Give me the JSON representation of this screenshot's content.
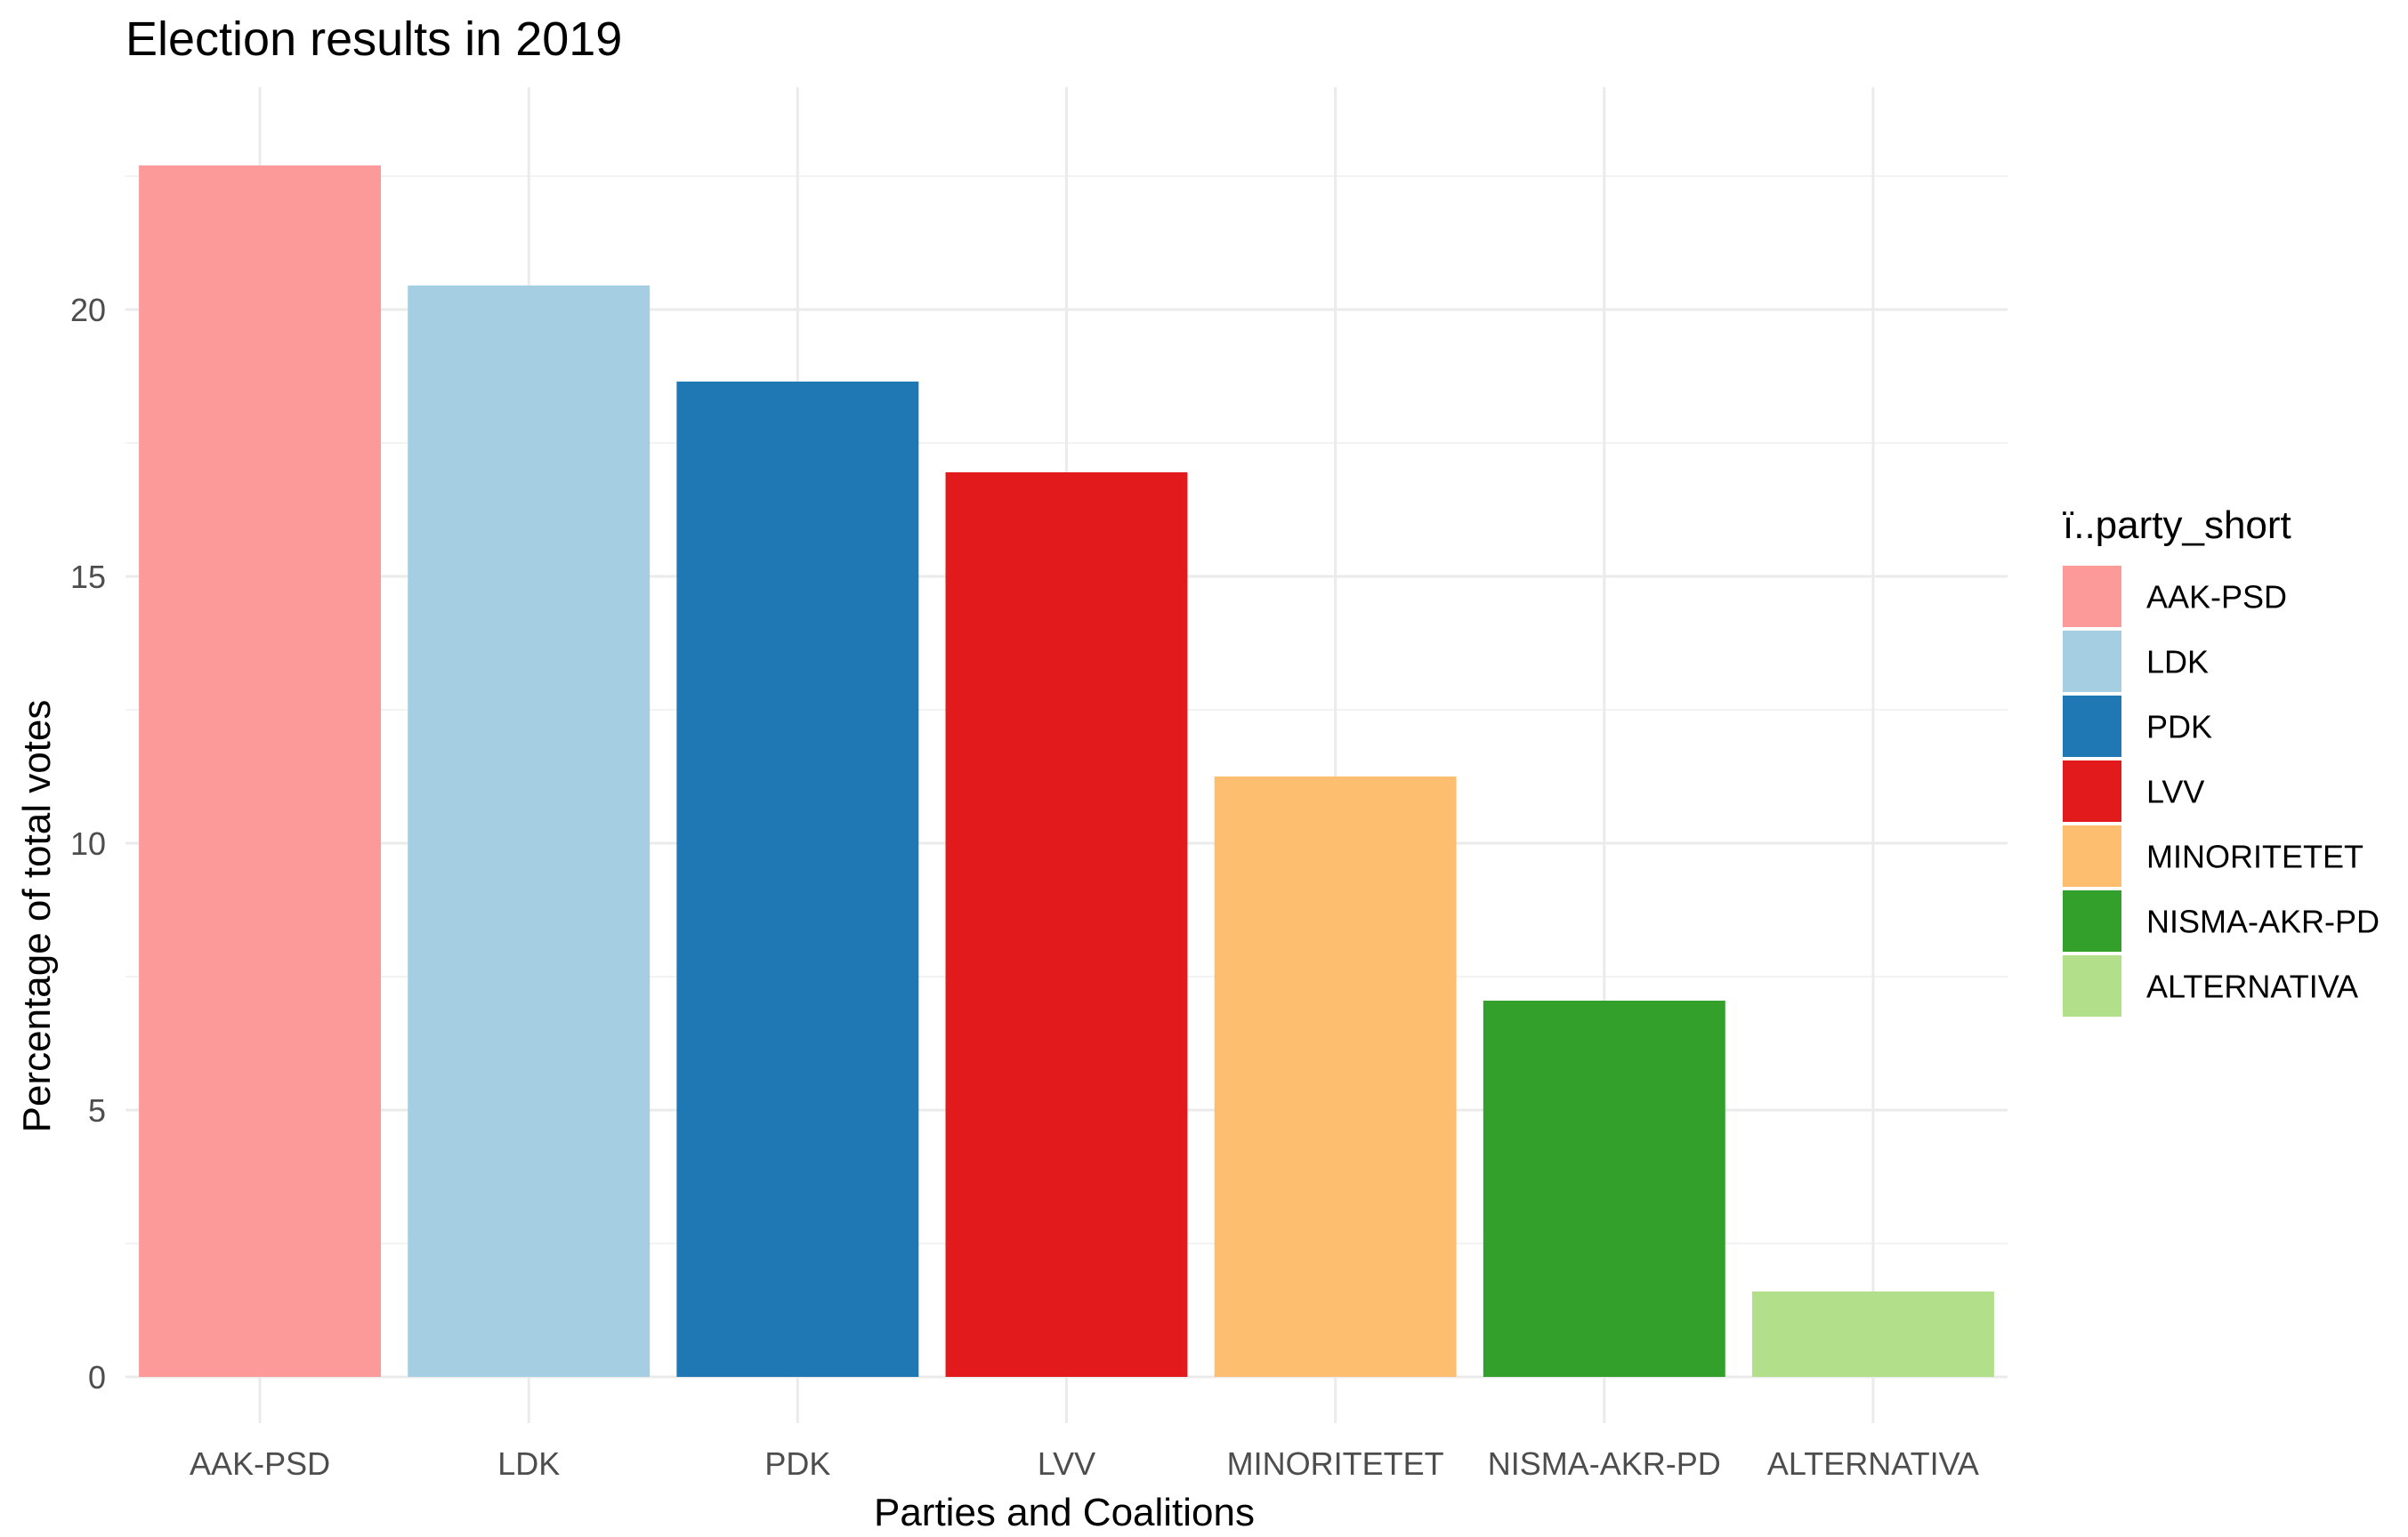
{
  "chart_data": {
    "type": "bar",
    "title": "Election results in 2019",
    "xlabel": "Parties and Coalitions",
    "ylabel": "Percentage of total votes",
    "categories": [
      "AAK-PSD",
      "LDK",
      "PDK",
      "LVV",
      "MINORITETET",
      "NISMA-AKR-PD",
      "ALTERNATIVA"
    ],
    "values": [
      22.7,
      20.45,
      18.65,
      16.95,
      11.25,
      7.05,
      1.6
    ],
    "colors": [
      "#fb9a99",
      "#a6cee3",
      "#1f78b4",
      "#e31a1c",
      "#fdbf6f",
      "#33a02c",
      "#b2df8a"
    ],
    "ylim": [
      0,
      23.8
    ],
    "yticks": [
      0,
      5,
      10,
      15,
      20
    ],
    "grid": true,
    "legend": {
      "title": "ï..party_short",
      "position": "right",
      "entries": [
        "AAK-PSD",
        "LDK",
        "PDK",
        "LVV",
        "MINORITETET",
        "NISMA-AKR-PD",
        "ALTERNATIVA"
      ]
    }
  }
}
